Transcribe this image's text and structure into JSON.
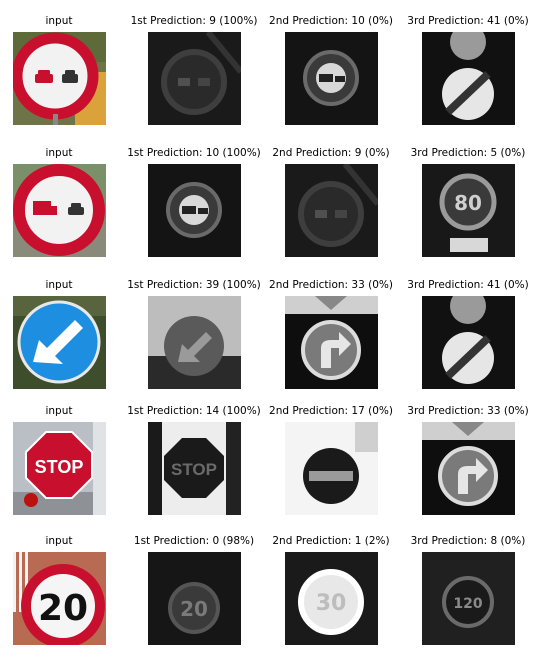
{
  "rows": [
    {
      "sign": "no-overtaking",
      "labels": [
        "input",
        "1st Prediction: 9 (100%)",
        "2nd Prediction: 10 (0%)",
        "3rd Prediction: 41 (0%)"
      ],
      "thumbs": [
        "photo-no-overtaking",
        "gray-no-overtaking",
        "gray-no-overtaking-trucks",
        "gray-end-of-no-passing"
      ]
    },
    {
      "sign": "no-overtaking-trucks",
      "labels": [
        "input",
        "1st Prediction: 10 (100%)",
        "2nd Prediction: 9 (0%)",
        "3rd Prediction: 5 (0%)"
      ],
      "thumbs": [
        "photo-no-overtaking-trucks",
        "gray-no-overtaking-trucks",
        "gray-no-overtaking",
        "gray-speed-limit-80"
      ]
    },
    {
      "sign": "keep-left",
      "labels": [
        "input",
        "1st Prediction: 39 (100%)",
        "2nd Prediction: 33 (0%)",
        "3rd Prediction: 41 (0%)"
      ],
      "thumbs": [
        "photo-keep-left",
        "gray-keep-left",
        "gray-turn-right-ahead",
        "gray-end-of-no-passing"
      ]
    },
    {
      "sign": "stop",
      "labels": [
        "input",
        "1st Prediction: 14 (100%)",
        "2nd Prediction: 17 (0%)",
        "3rd Prediction: 33 (0%)"
      ],
      "thumbs": [
        "photo-stop",
        "gray-stop",
        "gray-no-entry",
        "gray-turn-right-ahead"
      ]
    },
    {
      "sign": "speed-limit-20",
      "labels": [
        "input",
        "1st Prediction: 0 (98%)",
        "2nd Prediction: 1 (2%)",
        "3rd Prediction: 8 (0%)"
      ],
      "thumbs": [
        "photo-speed-limit-20",
        "gray-speed-limit-20",
        "gray-speed-limit-30",
        "gray-speed-limit-120"
      ]
    }
  ],
  "sign_text": {
    "stop": "STOP",
    "speed_20": "20",
    "speed_30": "30",
    "speed_80": "80",
    "speed_120": "120"
  },
  "colors": {
    "sign_red": "#c8102e",
    "sign_blue": "#1e8fe0",
    "sign_white": "#f2f2f2",
    "background": "#ffffff"
  }
}
